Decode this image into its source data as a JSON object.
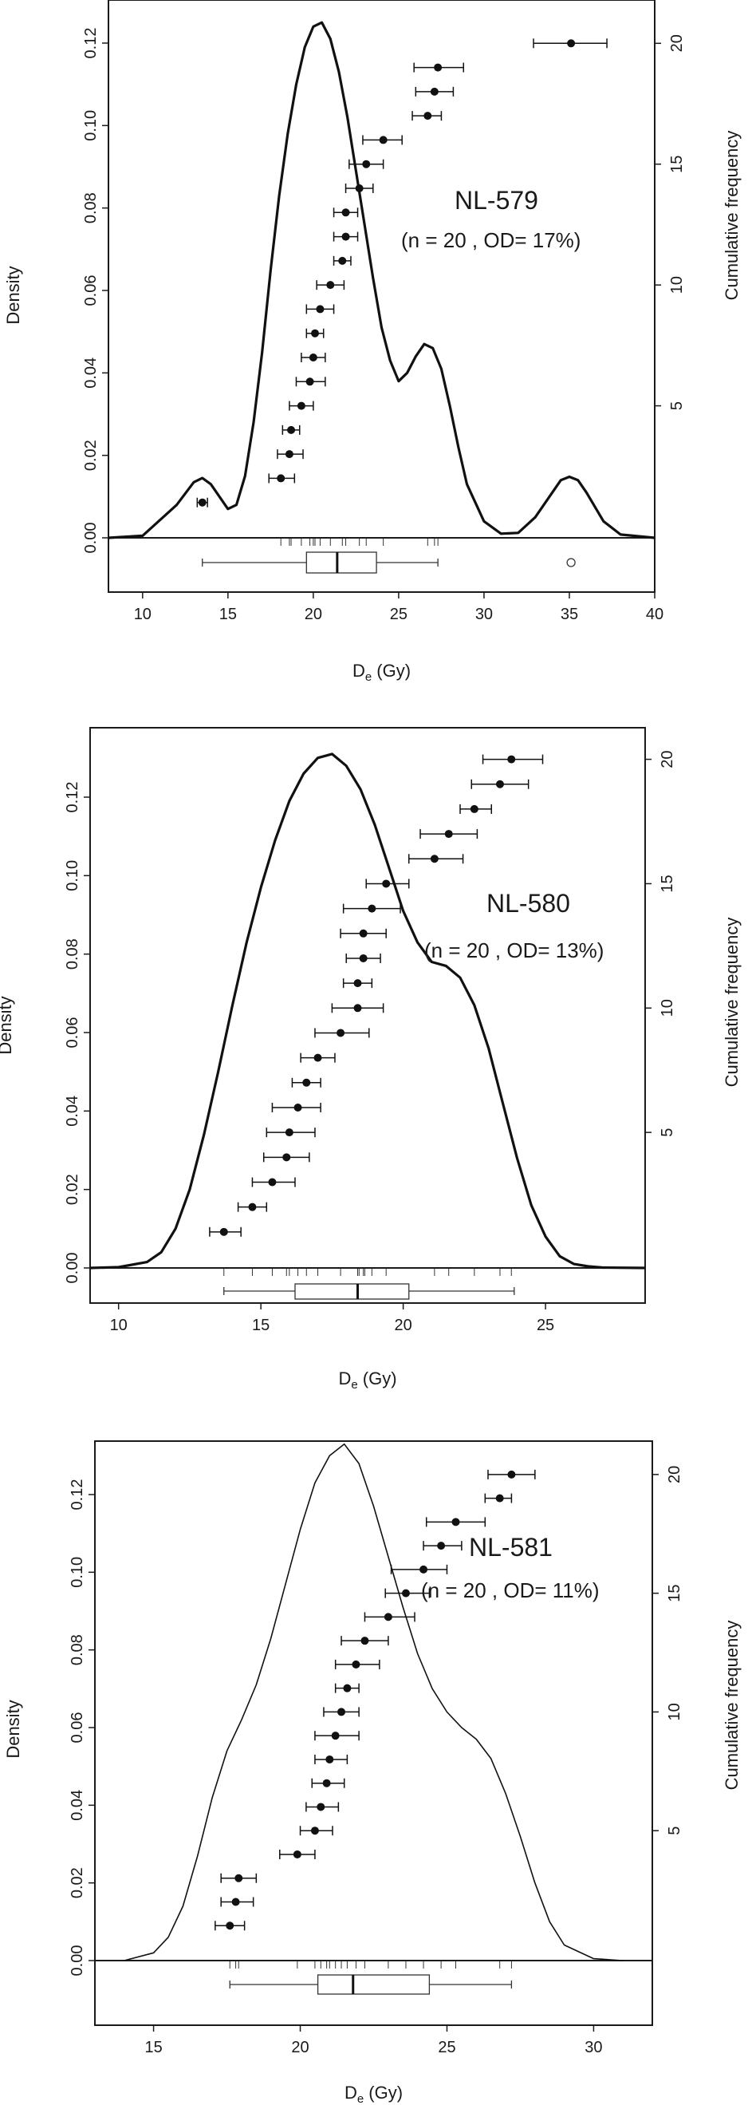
{
  "figure": {
    "kind": "De radial/KDE plot panels"
  },
  "chart_data": [
    {
      "type": "line",
      "sample": "NL-579",
      "stats": "(n = 20 , OD= 17%)",
      "xlabel_main": "D",
      "xlabel_sub": "e",
      "xlabel_unit": " (Gy)",
      "ylabel": "Density",
      "y2label": "Cumulative frequency",
      "xlim": [
        8,
        40
      ],
      "xticks": [
        10,
        15,
        20,
        25,
        30,
        35,
        40
      ],
      "ylim": [
        0,
        0.125
      ],
      "yticks": [
        "0.00",
        "0.02",
        "0.04",
        "0.06",
        "0.08",
        "0.10",
        "0.12"
      ],
      "y2lim": [
        0,
        21
      ],
      "y2ticks": [
        5,
        10,
        15,
        20
      ],
      "kde_line": "thick",
      "series": [
        {
          "x": [
            8,
            10,
            12,
            13,
            13.5,
            14,
            15,
            15.5,
            16,
            16.5,
            17,
            17.5,
            18,
            18.5,
            19,
            19.5,
            20,
            20.5,
            21,
            21.5,
            22,
            22.5,
            23,
            23.5,
            24,
            24.5,
            25,
            25.5,
            26,
            26.5,
            27,
            27.5,
            28,
            28.5,
            29,
            30,
            31,
            32,
            33,
            34,
            34.5,
            35,
            35.5,
            36,
            37,
            38,
            40
          ],
          "y": [
            0,
            0.0005,
            0.008,
            0.0135,
            0.0145,
            0.013,
            0.007,
            0.008,
            0.015,
            0.028,
            0.045,
            0.065,
            0.083,
            0.098,
            0.11,
            0.119,
            0.124,
            0.125,
            0.121,
            0.113,
            0.102,
            0.089,
            0.076,
            0.063,
            0.051,
            0.043,
            0.038,
            0.04,
            0.044,
            0.047,
            0.046,
            0.041,
            0.032,
            0.022,
            0.013,
            0.004,
            0.001,
            0.0012,
            0.005,
            0.011,
            0.014,
            0.0148,
            0.014,
            0.011,
            0.004,
            0.0008,
            0
          ]
        }
      ],
      "points": [
        {
          "de": 13.5,
          "lo": 13.2,
          "hi": 13.8
        },
        {
          "de": 18.1,
          "lo": 17.4,
          "hi": 18.9
        },
        {
          "de": 18.6,
          "lo": 17.9,
          "hi": 19.4
        },
        {
          "de": 18.7,
          "lo": 18.2,
          "hi": 19.2
        },
        {
          "de": 19.3,
          "lo": 18.6,
          "hi": 20.0
        },
        {
          "de": 19.8,
          "lo": 19.0,
          "hi": 20.7
        },
        {
          "de": 20.0,
          "lo": 19.3,
          "hi": 20.7
        },
        {
          "de": 20.1,
          "lo": 19.6,
          "hi": 20.6
        },
        {
          "de": 20.4,
          "lo": 19.6,
          "hi": 21.2
        },
        {
          "de": 21.0,
          "lo": 20.2,
          "hi": 21.8
        },
        {
          "de": 21.7,
          "lo": 21.2,
          "hi": 22.2
        },
        {
          "de": 21.9,
          "lo": 21.2,
          "hi": 22.6
        },
        {
          "de": 21.9,
          "lo": 21.2,
          "hi": 22.6
        },
        {
          "de": 22.7,
          "lo": 21.9,
          "hi": 23.5
        },
        {
          "de": 23.1,
          "lo": 22.1,
          "hi": 24.1
        },
        {
          "de": 24.1,
          "lo": 22.9,
          "hi": 25.2
        },
        {
          "de": 26.7,
          "lo": 25.8,
          "hi": 27.5
        },
        {
          "de": 27.1,
          "lo": 26.0,
          "hi": 28.2
        },
        {
          "de": 27.3,
          "lo": 25.9,
          "hi": 28.8
        },
        {
          "de": 35.1,
          "lo": 32.9,
          "hi": 37.2
        }
      ],
      "boxplot": {
        "whisker_lo": 13.5,
        "q1": 19.6,
        "median": 21.4,
        "q3": 23.7,
        "whisker_hi": 27.3,
        "outliers": [
          35.1
        ]
      },
      "rug": [
        18.1,
        18.6,
        18.7,
        19.3,
        19.8,
        20.0,
        20.1,
        20.4,
        21.0,
        21.7,
        21.9,
        22.7,
        23.1,
        24.1,
        26.7,
        27.1,
        27.3
      ]
    },
    {
      "type": "line",
      "sample": "NL-580",
      "stats": "(n = 20 , OD= 13%)",
      "xlabel_main": "D",
      "xlabel_sub": "e",
      "xlabel_unit": " (Gy)",
      "ylabel": "Density",
      "y2label": "Cumulative frequency",
      "xlim": [
        9,
        28.5
      ],
      "xticks": [
        10,
        15,
        20,
        25
      ],
      "ylim": [
        0,
        0.132
      ],
      "yticks": [
        "0.00",
        "0.02",
        "0.04",
        "0.06",
        "0.08",
        "0.10",
        "0.12"
      ],
      "y2lim": [
        0,
        20.5
      ],
      "y2ticks": [
        5,
        10,
        15,
        20
      ],
      "kde_line": "thick",
      "series": [
        {
          "x": [
            9,
            10,
            11,
            11.5,
            12,
            12.5,
            13,
            13.5,
            14,
            14.5,
            15,
            15.5,
            16,
            16.5,
            17,
            17.5,
            18,
            18.5,
            19,
            19.5,
            20,
            20.5,
            21,
            21.5,
            22,
            22.5,
            23,
            23.5,
            24,
            24.5,
            25,
            25.5,
            26,
            26.5,
            27,
            28.5
          ],
          "y": [
            0,
            0.0002,
            0.0015,
            0.004,
            0.01,
            0.02,
            0.034,
            0.05,
            0.067,
            0.083,
            0.097,
            0.109,
            0.119,
            0.126,
            0.13,
            0.131,
            0.128,
            0.122,
            0.113,
            0.102,
            0.091,
            0.083,
            0.078,
            0.077,
            0.074,
            0.067,
            0.056,
            0.042,
            0.028,
            0.016,
            0.008,
            0.003,
            0.001,
            0.0004,
            0.0001,
            0
          ]
        }
      ],
      "points": [
        {
          "de": 13.7,
          "lo": 13.2,
          "hi": 14.3
        },
        {
          "de": 14.7,
          "lo": 14.2,
          "hi": 15.2
        },
        {
          "de": 15.4,
          "lo": 14.7,
          "hi": 16.2
        },
        {
          "de": 15.9,
          "lo": 15.1,
          "hi": 16.7
        },
        {
          "de": 16.0,
          "lo": 15.2,
          "hi": 16.9
        },
        {
          "de": 16.3,
          "lo": 15.4,
          "hi": 17.1
        },
        {
          "de": 16.6,
          "lo": 16.1,
          "hi": 17.1
        },
        {
          "de": 17.0,
          "lo": 16.4,
          "hi": 17.6
        },
        {
          "de": 17.8,
          "lo": 16.9,
          "hi": 18.8
        },
        {
          "de": 18.4,
          "lo": 17.5,
          "hi": 19.3
        },
        {
          "de": 18.4,
          "lo": 17.9,
          "hi": 18.9
        },
        {
          "de": 18.6,
          "lo": 18.0,
          "hi": 19.2
        },
        {
          "de": 18.6,
          "lo": 17.8,
          "hi": 19.4
        },
        {
          "de": 18.9,
          "lo": 17.9,
          "hi": 19.9
        },
        {
          "de": 19.4,
          "lo": 18.7,
          "hi": 20.2
        },
        {
          "de": 21.1,
          "lo": 20.2,
          "hi": 22.1
        },
        {
          "de": 21.6,
          "lo": 20.6,
          "hi": 22.6
        },
        {
          "de": 22.5,
          "lo": 22.0,
          "hi": 23.1
        },
        {
          "de": 23.4,
          "lo": 22.4,
          "hi": 24.4
        },
        {
          "de": 23.8,
          "lo": 22.8,
          "hi": 24.9
        }
      ],
      "boxplot": {
        "whisker_lo": 13.7,
        "q1": 16.2,
        "median": 18.4,
        "q3": 20.2,
        "whisker_hi": 23.9,
        "outliers": []
      },
      "rug": [
        13.7,
        14.7,
        15.4,
        15.9,
        16.0,
        16.3,
        16.6,
        17.0,
        17.8,
        18.4,
        18.45,
        18.6,
        18.65,
        18.9,
        19.4,
        21.1,
        21.6,
        22.5,
        23.4,
        23.8
      ]
    },
    {
      "type": "line",
      "sample": "NL-581",
      "stats": "(n = 20 , OD= 11%)",
      "xlabel_main": "D",
      "xlabel_sub": "e",
      "xlabel_unit": " (Gy)",
      "ylabel": "Density",
      "y2label": "Cumulative frequency",
      "xlim": [
        13,
        32
      ],
      "xticks": [
        15,
        20,
        25,
        30
      ],
      "ylim": [
        0,
        0.133
      ],
      "yticks": [
        "0.00",
        "0.02",
        "0.04",
        "0.06",
        "0.08",
        "0.10",
        "0.12"
      ],
      "y2lim": [
        0,
        20.6
      ],
      "y2ticks": [
        5,
        10,
        15,
        20
      ],
      "kde_line": "thin",
      "series": [
        {
          "x": [
            14,
            15,
            15.5,
            16,
            16.5,
            17,
            17.5,
            18,
            18.5,
            19,
            19.5,
            20,
            20.5,
            21,
            21.5,
            22,
            22.5,
            23,
            23.5,
            24,
            24.5,
            25,
            25.5,
            26,
            26.5,
            27,
            27.5,
            28,
            28.5,
            29,
            30,
            31
          ],
          "y": [
            0,
            0.002,
            0.006,
            0.014,
            0.027,
            0.042,
            0.054,
            0.062,
            0.071,
            0.083,
            0.097,
            0.111,
            0.123,
            0.13,
            0.133,
            0.128,
            0.117,
            0.104,
            0.091,
            0.079,
            0.07,
            0.064,
            0.06,
            0.057,
            0.052,
            0.043,
            0.032,
            0.02,
            0.01,
            0.004,
            0.0005,
            0
          ]
        }
      ],
      "points": [
        {
          "de": 17.6,
          "lo": 17.1,
          "hi": 18.1
        },
        {
          "de": 17.8,
          "lo": 17.3,
          "hi": 18.4
        },
        {
          "de": 17.9,
          "lo": 17.3,
          "hi": 18.5
        },
        {
          "de": 19.9,
          "lo": 19.3,
          "hi": 20.5
        },
        {
          "de": 20.5,
          "lo": 20.0,
          "hi": 21.1
        },
        {
          "de": 20.7,
          "lo": 20.2,
          "hi": 21.3
        },
        {
          "de": 20.9,
          "lo": 20.4,
          "hi": 21.5
        },
        {
          "de": 21.0,
          "lo": 20.5,
          "hi": 21.6
        },
        {
          "de": 21.2,
          "lo": 20.5,
          "hi": 22.0
        },
        {
          "de": 21.4,
          "lo": 20.8,
          "hi": 22.0
        },
        {
          "de": 21.6,
          "lo": 21.2,
          "hi": 22.0
        },
        {
          "de": 21.9,
          "lo": 21.2,
          "hi": 22.7
        },
        {
          "de": 22.2,
          "lo": 21.4,
          "hi": 23.0
        },
        {
          "de": 23.0,
          "lo": 22.2,
          "hi": 23.9
        },
        {
          "de": 23.6,
          "lo": 22.9,
          "hi": 24.4
        },
        {
          "de": 24.2,
          "lo": 23.1,
          "hi": 25.0
        },
        {
          "de": 24.8,
          "lo": 24.2,
          "hi": 25.5
        },
        {
          "de": 25.3,
          "lo": 24.3,
          "hi": 26.3
        },
        {
          "de": 26.8,
          "lo": 26.3,
          "hi": 27.2
        },
        {
          "de": 27.2,
          "lo": 26.4,
          "hi": 28.0
        }
      ],
      "boxplot": {
        "whisker_lo": 17.6,
        "q1": 20.6,
        "median": 21.8,
        "q3": 24.4,
        "whisker_hi": 27.2,
        "outliers": []
      },
      "rug": [
        17.6,
        17.8,
        17.9,
        19.9,
        20.5,
        20.7,
        20.9,
        21.0,
        21.2,
        21.4,
        21.6,
        21.9,
        22.2,
        23.0,
        23.6,
        24.2,
        24.8,
        25.3,
        26.8,
        27.2
      ]
    }
  ]
}
